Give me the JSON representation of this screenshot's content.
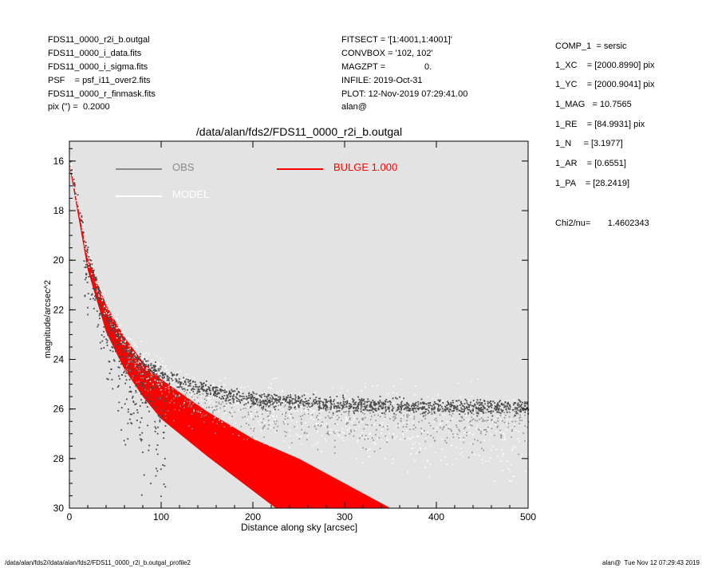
{
  "header": {
    "left": [
      "FDS11_0000_r2i_b.outgal",
      "FDS11_0000_i_data.fits",
      "FDS11_0000_i_sigma.fits",
      "PSF    = psf_i11_over2.fits",
      "FDS11_0000_r_finmask.fits",
      "pix (\") =  0.2000"
    ],
    "middle": [
      "FITSECT = '[1:4001,1:4001]'",
      "CONVBOX = '102, 102'",
      "MAGZPT =                0.",
      "INFILE: 2019-Oct-31",
      "PLOT: 12-Nov-2019 07:29:41.00",
      "alan@"
    ]
  },
  "params": [
    "COMP_1  = sersic",
    "1_XC    = [2000.8990] pix",
    "1_YC    = [2000.9041] pix",
    "1_MAG   = 10.7565",
    "1_RE    = [84.9931] pix",
    "1_N     = [3.1977]",
    "1_AR    = [0.6551]",
    "1_PA    = [28.2419]"
  ],
  "chi2": "Chi2/nu=       1.4602343",
  "footer": {
    "left": "/data/alan/fds2//data/alan/fds2/FDS11_0000_r2i_b.outgal_profile2",
    "right": "alan@  Tue Nov 12 07:29:43 2019"
  },
  "colors": {
    "background": "#e3e3e3",
    "obs_dark": "#4a4a4a",
    "obs_light": "#8a8a8a",
    "model": "#ffffff",
    "bulge": "#ff0000"
  },
  "chart_data": {
    "type": "scatter",
    "title": "/data/alan/fds2/FDS11_0000_r2i_b.outgal",
    "xlabel": "Distance along sky [arcsec]",
    "ylabel": "magnitude/arcsec^2",
    "xlim": [
      0,
      500
    ],
    "ylim": [
      30,
      15.2
    ],
    "y_inverted": true,
    "x_ticks": [
      0,
      100,
      200,
      300,
      400,
      500
    ],
    "y_ticks": [
      16,
      18,
      20,
      22,
      24,
      26,
      28,
      30
    ],
    "legend": {
      "placement": "top-left",
      "entries": [
        {
          "label": "OBS",
          "color": "#8a8a8a"
        },
        {
          "label": "MODEL",
          "color": "#ffffff"
        },
        {
          "label": "BULGE  1.000",
          "color": "#ff0000"
        }
      ]
    },
    "series": [
      {
        "name": "OBS",
        "style": "points",
        "profile": [
          [
            0,
            16.0
          ],
          [
            20,
            19.8
          ],
          [
            40,
            22.2
          ],
          [
            60,
            23.4
          ],
          [
            80,
            24.1
          ],
          [
            100,
            24.6
          ],
          [
            130,
            25.0
          ],
          [
            160,
            25.3
          ],
          [
            200,
            25.6
          ],
          [
            300,
            25.8
          ],
          [
            400,
            25.9
          ],
          [
            500,
            25.9
          ]
        ]
      },
      {
        "name": "MODEL",
        "style": "points",
        "profile": [
          [
            0,
            16.0
          ],
          [
            20,
            19.9
          ],
          [
            40,
            22.0
          ],
          [
            60,
            23.2
          ],
          [
            80,
            24.0
          ],
          [
            100,
            24.6
          ],
          [
            150,
            25.5
          ],
          [
            200,
            26.0
          ],
          [
            300,
            26.5
          ],
          [
            400,
            26.8
          ],
          [
            500,
            27.0
          ]
        ]
      },
      {
        "name": "BULGE  1.000",
        "style": "band",
        "upper": [
          [
            0,
            16.0
          ],
          [
            20,
            19.9
          ],
          [
            40,
            21.8
          ],
          [
            60,
            23.1
          ],
          [
            80,
            24.1
          ],
          [
            100,
            24.8
          ],
          [
            150,
            26.1
          ],
          [
            200,
            27.2
          ],
          [
            250,
            28.0
          ],
          [
            300,
            29.0
          ],
          [
            350,
            30.0
          ]
        ],
        "lower": [
          [
            0,
            16.2
          ],
          [
            20,
            20.4
          ],
          [
            40,
            22.9
          ],
          [
            60,
            24.4
          ],
          [
            80,
            25.5
          ],
          [
            100,
            26.4
          ],
          [
            150,
            27.9
          ],
          [
            200,
            29.3
          ],
          [
            225,
            30.0
          ]
        ]
      }
    ]
  }
}
